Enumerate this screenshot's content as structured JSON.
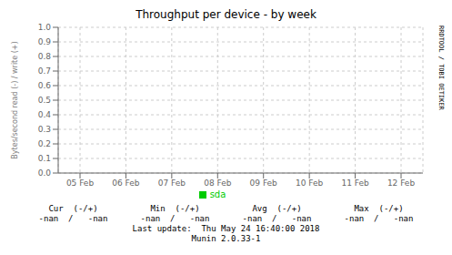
{
  "chart_data": {
    "type": "line",
    "title": "Throughput per device - by week",
    "ylabel": "Bytes/second read (-) / write (+)",
    "categories": [
      "05 Feb",
      "06 Feb",
      "07 Feb",
      "08 Feb",
      "09 Feb",
      "10 Feb",
      "11 Feb",
      "12 Feb"
    ],
    "series": [
      {
        "name": "sda",
        "color": "#00cc00",
        "values": [
          null,
          null,
          null,
          null,
          null,
          null,
          null,
          null
        ]
      }
    ],
    "ylim": [
      0.0,
      1.0
    ],
    "yticks": [
      {
        "value": 0.0,
        "label": "0.0"
      },
      0.1,
      0.2,
      0.3,
      0.4,
      0.5,
      0.6,
      0.7,
      0.8,
      0.9,
      {
        "value": 1.0,
        "label": "1.0"
      }
    ],
    "grid": true,
    "legend": "bottom",
    "annotations": [
      [
        "Cur  (-/+)",
        "Min  (-/+)",
        "Avg  (-/+)",
        "Max  (-/+)"
      ],
      [
        "-nan  /   -nan",
        "-nan  /   -nan",
        "-nan  /   -nan",
        "-nan  /   -nan"
      ],
      [
        "Last update:  Thu May 24 16:40:00 2018"
      ],
      [
        "Munin 2.0.33-1"
      ],
      [
        "RRDTOOL / TOBI OETIKER"
      ]
    ]
  }
}
